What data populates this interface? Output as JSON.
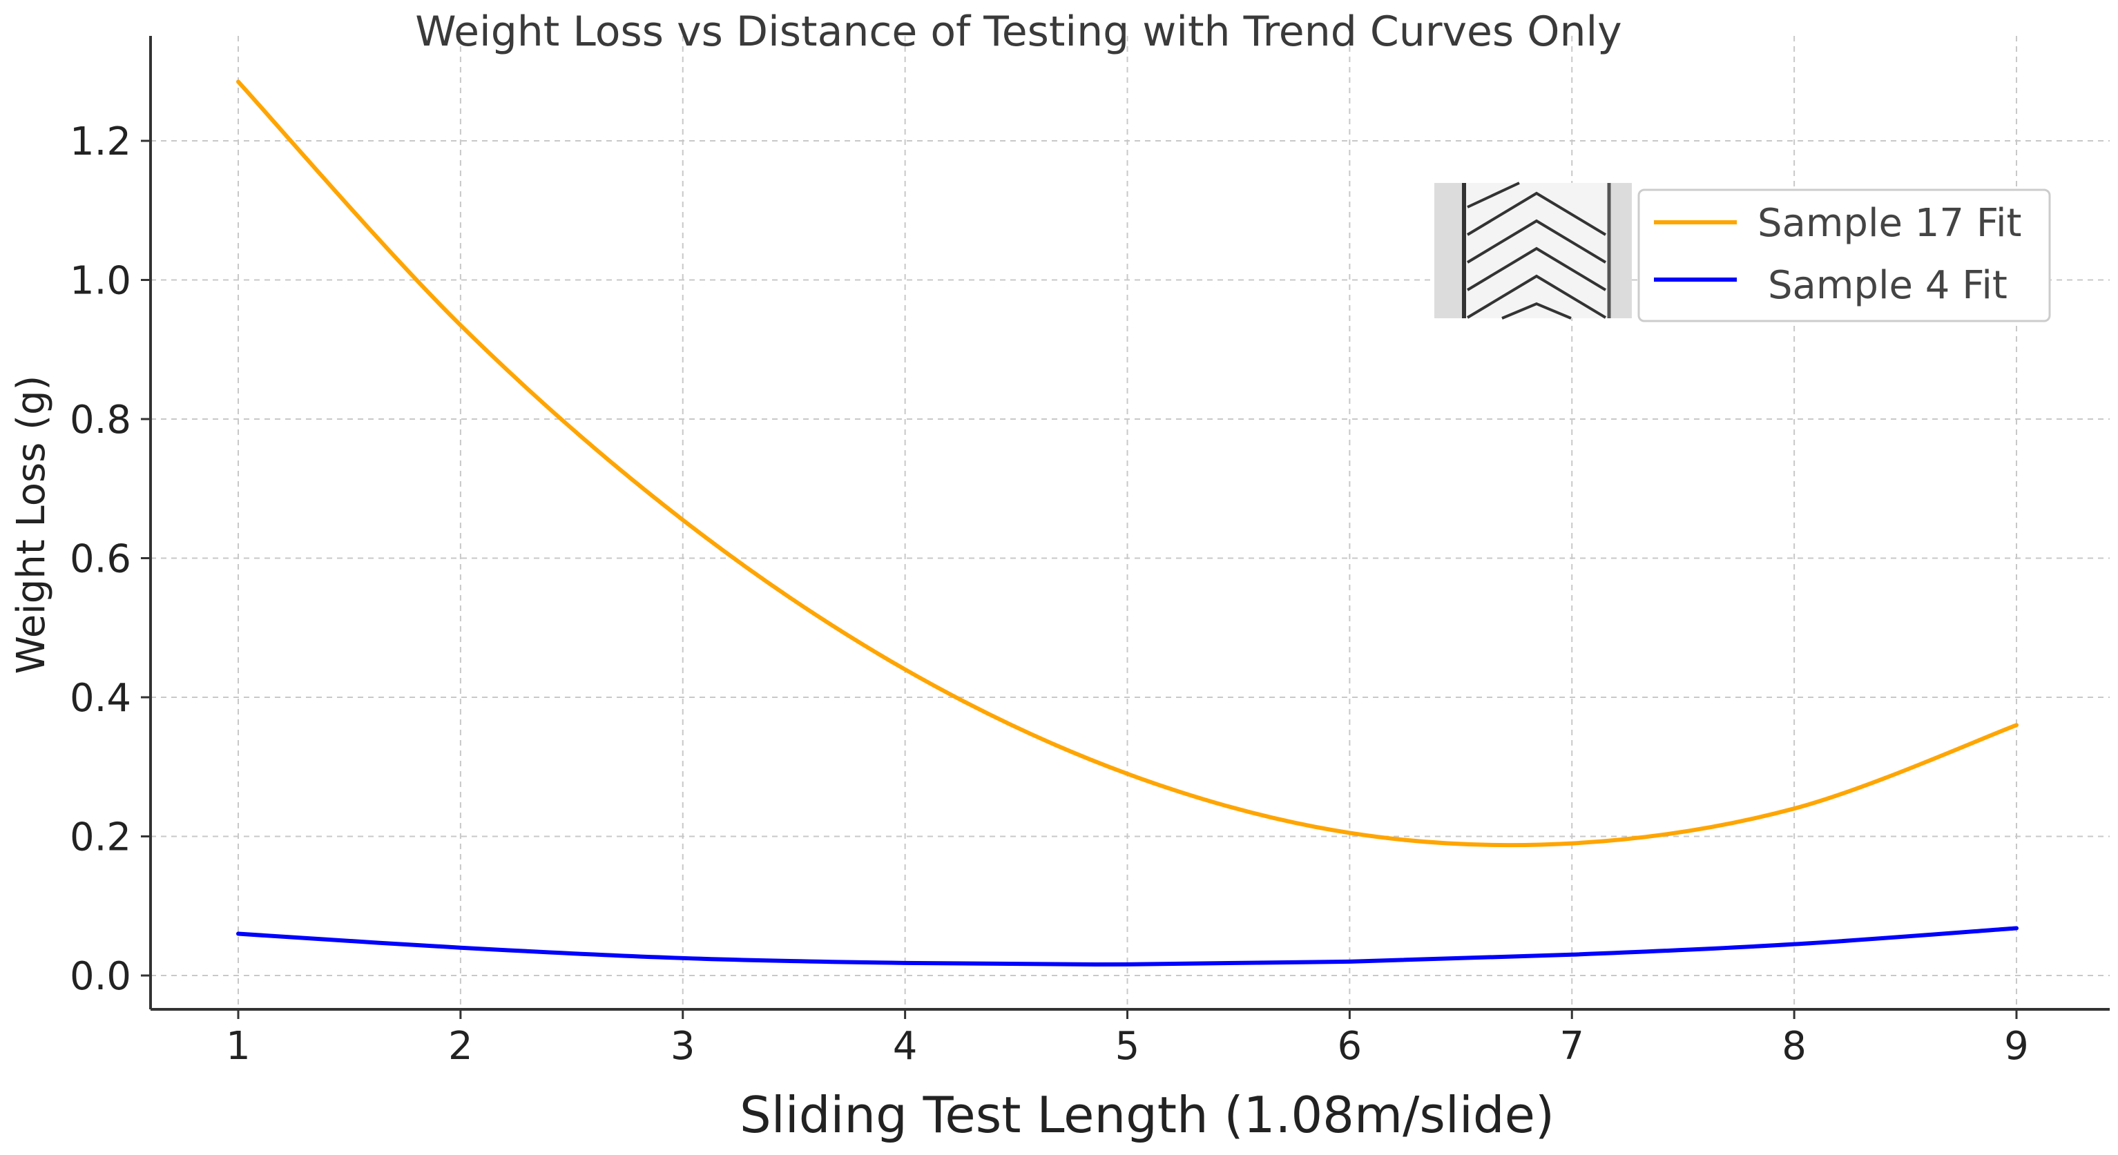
{
  "chart_data": {
    "type": "line",
    "title": "Weight Loss vs Distance of Testing with Trend Curves Only",
    "xlabel": "Sliding Test Length (1.08m/slide)",
    "ylabel": "Weight Loss (g)",
    "xlim": [
      0.6,
      9.4
    ],
    "ylim": [
      -0.05,
      1.35
    ],
    "grid": true,
    "legend_position": "top-right",
    "x_ticks": [
      1,
      2,
      3,
      4,
      5,
      6,
      7,
      8,
      9
    ],
    "x_tick_labels": [
      "1",
      "2",
      "3",
      "4",
      "5",
      "6",
      "7",
      "8",
      "9"
    ],
    "y_ticks": [
      0.0,
      0.2,
      0.4,
      0.6,
      0.8,
      1.0,
      1.2
    ],
    "y_tick_labels": [
      "0.0",
      "0.2",
      "0.4",
      "0.6",
      "0.8",
      "1.0",
      "1.2"
    ],
    "x": [
      1,
      2,
      3,
      4,
      5,
      6,
      7,
      8,
      9
    ],
    "series": [
      {
        "name": "Sample 17 Fit",
        "color": "#FFA500",
        "values": [
          1.285,
          0.935,
          0.655,
          0.44,
          0.29,
          0.205,
          0.19,
          0.24,
          0.36
        ]
      },
      {
        "name": "Sample 4 Fit",
        "color": "#0000FF",
        "values": [
          0.06,
          0.04,
          0.025,
          0.018,
          0.016,
          0.02,
          0.03,
          0.045,
          0.068
        ]
      }
    ]
  }
}
